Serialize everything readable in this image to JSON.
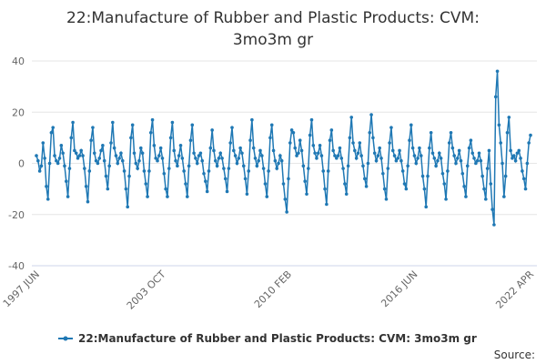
{
  "chart_data": {
    "type": "line",
    "title": "22:Manufacture of Rubber and Plastic Products: CVM: 3mo3m gr",
    "source": "Source:",
    "ylim": [
      -40,
      40
    ],
    "yticks": [
      -40,
      -20,
      0,
      20,
      40
    ],
    "grid": true,
    "categories": [
      "1997 JUN",
      null,
      null,
      null,
      null,
      null,
      null,
      null,
      null,
      null,
      null,
      null,
      null,
      null,
      null,
      null,
      null,
      null,
      null,
      null,
      null,
      null,
      null,
      null,
      null,
      null,
      null,
      null,
      null,
      null,
      null,
      null,
      null,
      null,
      null,
      null,
      null,
      null,
      null,
      null,
      null,
      null,
      null,
      null,
      null,
      null,
      null,
      null,
      null,
      null,
      null,
      null,
      null,
      null,
      null,
      null,
      null,
      null,
      null,
      null,
      null,
      null,
      null,
      null,
      null,
      null,
      null,
      null,
      null,
      null,
      null,
      null,
      null,
      null,
      null,
      null,
      "2003 OCT",
      null,
      null,
      null,
      null,
      null,
      null,
      null,
      null,
      null,
      null,
      null,
      null,
      null,
      null,
      null,
      null,
      null,
      null,
      null,
      null,
      null,
      null,
      null,
      null,
      null,
      null,
      null,
      null,
      null,
      null,
      null,
      null,
      null,
      null,
      null,
      null,
      null,
      null,
      null,
      null,
      null,
      null,
      null,
      null,
      null,
      null,
      null,
      null,
      null,
      null,
      null,
      null,
      null,
      null,
      null,
      null,
      null,
      null,
      null,
      null,
      null,
      null,
      null,
      null,
      null,
      null,
      null,
      null,
      null,
      null,
      null,
      null,
      null,
      null,
      null,
      "2010 FEB",
      null,
      null,
      null,
      null,
      null,
      null,
      null,
      null,
      null,
      null,
      null,
      null,
      null,
      null,
      null,
      null,
      null,
      null,
      null,
      null,
      null,
      null,
      null,
      null,
      null,
      null,
      null,
      null,
      null,
      null,
      null,
      null,
      null,
      null,
      null,
      null,
      null,
      null,
      null,
      null,
      null,
      null,
      null,
      null,
      null,
      null,
      null,
      null,
      null,
      null,
      null,
      null,
      null,
      null,
      null,
      null,
      null,
      null,
      null,
      null,
      null,
      null,
      null,
      null,
      null,
      null,
      null,
      null,
      null,
      null,
      null,
      null,
      null,
      null,
      null,
      "2016 JUN",
      null,
      null,
      null,
      null,
      null,
      null,
      null,
      null,
      null,
      null,
      null,
      null,
      null,
      null,
      null,
      null,
      null,
      null,
      null,
      null,
      null,
      null,
      null,
      null,
      null,
      null,
      null,
      null,
      null,
      null,
      null,
      null,
      null,
      null,
      null,
      null,
      null,
      null,
      null,
      null,
      null,
      null,
      null,
      null,
      null,
      null,
      null,
      null,
      null,
      null,
      null,
      null,
      null,
      null,
      null,
      null,
      null,
      null,
      null,
      null,
      null,
      null,
      null,
      null,
      null,
      null,
      null,
      null,
      null,
      "2022 APR"
    ],
    "series": [
      {
        "name": "22:Manufacture of Rubber and Plastic Products: CVM: 3mo3m gr",
        "color": "#1f78b4",
        "values": [
          3,
          1,
          -3,
          -1,
          8,
          2,
          -9,
          -14,
          0,
          12,
          14,
          3,
          1,
          0,
          2,
          7,
          4,
          -1,
          -7,
          -13,
          -2,
          10,
          16,
          5,
          4,
          2,
          3,
          5,
          3,
          -2,
          -9,
          -15,
          -3,
          9,
          14,
          4,
          1,
          0,
          2,
          5,
          7,
          1,
          -5,
          -10,
          -1,
          8,
          16,
          6,
          3,
          0,
          2,
          4,
          1,
          -3,
          -10,
          -17,
          -5,
          10,
          15,
          4,
          0,
          -2,
          1,
          6,
          4,
          -3,
          -8,
          -13,
          -3,
          12,
          17,
          7,
          2,
          1,
          3,
          6,
          2,
          -4,
          -10,
          -13,
          -2,
          10,
          16,
          5,
          1,
          -1,
          3,
          7,
          2,
          -3,
          -8,
          -13,
          -1,
          9,
          15,
          4,
          2,
          0,
          3,
          4,
          1,
          -4,
          -7,
          -11,
          -3,
          6,
          13,
          5,
          1,
          -1,
          2,
          4,
          2,
          -2,
          -6,
          -11,
          -2,
          8,
          14,
          5,
          3,
          0,
          2,
          6,
          4,
          -1,
          -6,
          -12,
          -3,
          9,
          17,
          6,
          2,
          -1,
          1,
          5,
          3,
          -2,
          -8,
          -13,
          -3,
          10,
          15,
          5,
          1,
          -2,
          0,
          3,
          1,
          -8,
          -14,
          -19,
          -6,
          8,
          13,
          12,
          6,
          3,
          4,
          9,
          5,
          -1,
          -7,
          -12,
          -2,
          11,
          17,
          7,
          4,
          2,
          4,
          7,
          3,
          -3,
          -10,
          -16,
          -3,
          9,
          13,
          5,
          3,
          2,
          3,
          6,
          2,
          -2,
          -8,
          -12,
          -1,
          10,
          18,
          8,
          5,
          2,
          4,
          8,
          3,
          -1,
          -6,
          -9,
          0,
          12,
          19,
          10,
          4,
          1,
          3,
          6,
          2,
          -4,
          -10,
          -14,
          -2,
          8,
          14,
          5,
          3,
          1,
          2,
          5,
          1,
          -3,
          -8,
          -10,
          -1,
          9,
          15,
          6,
          3,
          0,
          2,
          6,
          3,
          -5,
          -10,
          -17,
          -5,
          6,
          12,
          4,
          2,
          -1,
          1,
          4,
          2,
          -4,
          -8,
          -14,
          -3,
          8,
          12,
          6,
          3,
          0,
          2,
          5,
          1,
          -4,
          -9,
          -13,
          -1,
          6,
          9,
          4,
          2,
          0,
          1,
          4,
          1,
          -5,
          -10,
          -14,
          -2,
          5,
          -8,
          -18,
          -24,
          26,
          36,
          15,
          8,
          0,
          -13,
          -5,
          12,
          18,
          5,
          2,
          3,
          1,
          4,
          5,
          2,
          -3,
          -6,
          -10,
          0,
          8,
          11
        ]
      }
    ]
  }
}
